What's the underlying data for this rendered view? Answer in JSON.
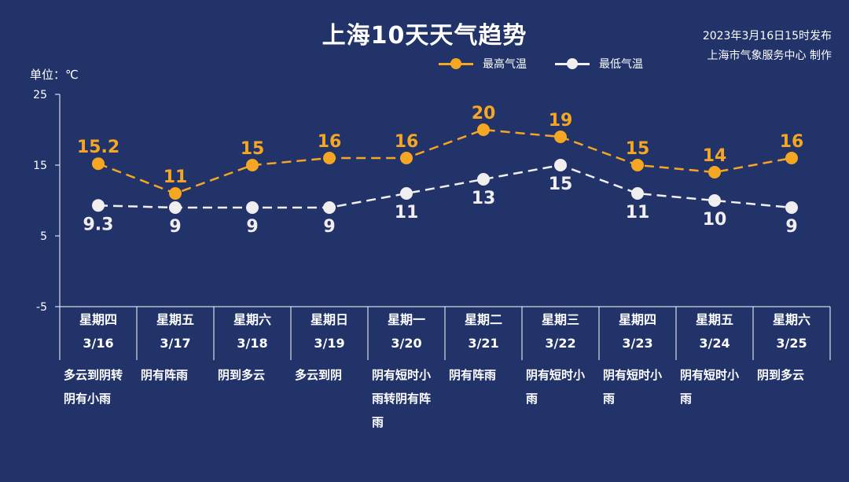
{
  "title": "上海10天天气趋势",
  "issued_time": "2023年3月16日15时发布",
  "issuer": "上海市气象服务中心 制作",
  "unit_label": "单位：℃",
  "colors": {
    "background": "#22336a",
    "high": "#f5a623",
    "low": "#f1eef0",
    "axis": "#ffffff"
  },
  "legend": {
    "high": "最高气温",
    "low": "最低气温"
  },
  "chart_data": {
    "type": "line",
    "title": "上海10天天气趋势",
    "ylabel": "单位：℃",
    "ylim": [
      -5,
      25
    ],
    "yticks": [
      25,
      15,
      5,
      -5
    ],
    "categories": [
      "3/16",
      "3/17",
      "3/18",
      "3/19",
      "3/20",
      "3/21",
      "3/22",
      "3/23",
      "3/24",
      "3/25"
    ],
    "weekdays": [
      "星期四",
      "星期五",
      "星期六",
      "星期日",
      "星期一",
      "星期二",
      "星期三",
      "星期四",
      "星期五",
      "星期六"
    ],
    "weather": [
      "多云到阴转阴有小雨",
      "阴有阵雨",
      "阴到多云",
      "多云到阴",
      "阴有短时小雨转阴有阵雨",
      "阴有阵雨",
      "阴有短时小雨",
      "阴有短时小雨",
      "阴有短时小雨",
      "阴到多云"
    ],
    "series": [
      {
        "name": "最高气温",
        "values": [
          15.2,
          11,
          15,
          16,
          16,
          20,
          19,
          15,
          14,
          16
        ],
        "labels": [
          "15.2",
          "11",
          "15",
          "16",
          "16",
          "20",
          "19",
          "15",
          "14",
          "16"
        ]
      },
      {
        "name": "最低气温",
        "values": [
          9.3,
          9,
          9,
          9,
          11,
          13,
          15,
          11,
          10,
          9
        ],
        "labels": [
          "9.3",
          "9",
          "9",
          "9",
          "11",
          "13",
          "15",
          "11",
          "10",
          "9"
        ]
      }
    ],
    "grid": false,
    "legend_position": "top-right"
  }
}
